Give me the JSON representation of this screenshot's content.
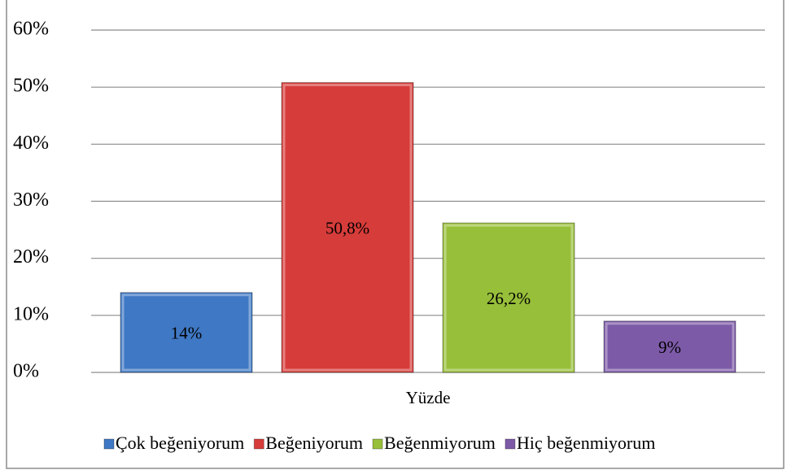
{
  "chart_data": {
    "type": "bar",
    "categories": [
      "Yüzde"
    ],
    "series": [
      {
        "name": "Çok beğeniyorum",
        "color": "#3f78c4",
        "values": [
          14
        ],
        "value_labels": [
          "14%"
        ]
      },
      {
        "name": "Beğeniyorum",
        "color": "#d63c3a",
        "values": [
          50.8
        ],
        "value_labels": [
          "50,8%"
        ]
      },
      {
        "name": "Beğenmiyorum",
        "color": "#98bf3a",
        "values": [
          26.2
        ],
        "value_labels": [
          "26,2%"
        ]
      },
      {
        "name": "Hiç beğenmiyorum",
        "color": "#7d5aa8",
        "values": [
          9
        ],
        "value_labels": [
          "9%"
        ]
      }
    ],
    "ylim": [
      0,
      60
    ],
    "yticks": [
      {
        "value": 0,
        "label": "0%"
      },
      {
        "value": 10,
        "label": "10%"
      },
      {
        "value": 20,
        "label": "20%"
      },
      {
        "value": 30,
        "label": "30%"
      },
      {
        "value": 40,
        "label": "40%"
      },
      {
        "value": 50,
        "label": "50%"
      },
      {
        "value": 60,
        "label": "60%"
      }
    ],
    "grid": true,
    "legend": "bottom"
  }
}
